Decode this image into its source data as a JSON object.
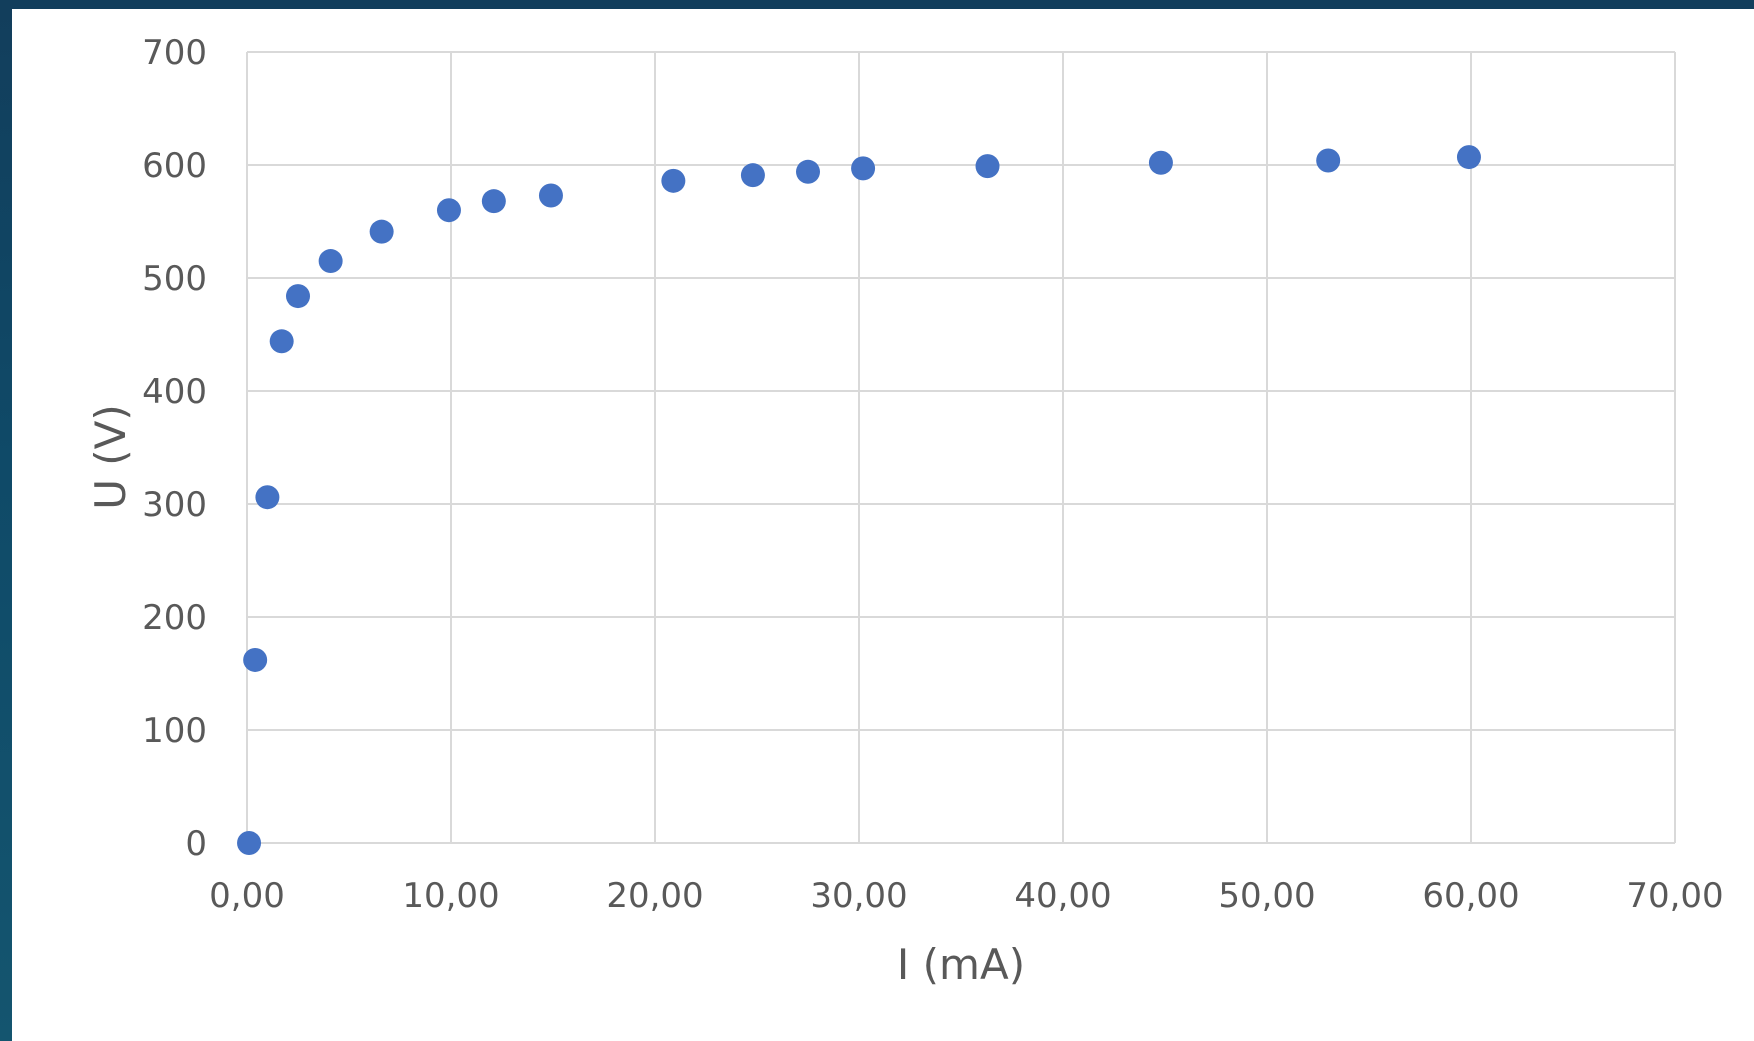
{
  "chart_data": {
    "type": "scatter",
    "title": "",
    "xlabel": "I (mA)",
    "ylabel": "U (V)",
    "xlim": [
      0,
      70
    ],
    "ylim": [
      0,
      700
    ],
    "x_ticks": [
      "0,00",
      "10,00",
      "20,00",
      "30,00",
      "40,00",
      "50,00",
      "60,00",
      "70,00"
    ],
    "y_ticks": [
      "0",
      "100",
      "200",
      "300",
      "400",
      "500",
      "600",
      "700"
    ],
    "grid": true,
    "legend": "none",
    "marker_color": "#4472c4",
    "series": [
      {
        "x": [
          0.1,
          0.4,
          1.0,
          1.7,
          2.5,
          4.1,
          6.6,
          9.9,
          12.1,
          14.9,
          20.9,
          24.8,
          27.5,
          30.2,
          36.3,
          44.8,
          53.0,
          59.9
        ],
        "y": [
          0,
          162,
          306,
          444,
          484,
          515,
          541,
          560,
          568,
          573,
          586,
          591,
          594,
          597,
          599,
          602,
          604,
          607
        ]
      }
    ]
  }
}
